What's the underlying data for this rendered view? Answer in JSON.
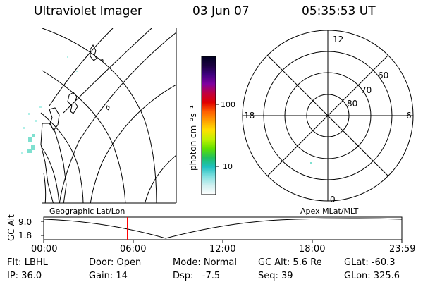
{
  "header": {
    "instrument": "Ultraviolet Imager",
    "date": "03 Jun 07",
    "time": "05:35:53 UT"
  },
  "left_panel": {
    "label": "Geographic Lat/Lon"
  },
  "right_panel": {
    "label": "Apex MLat/MLT",
    "mlt_labels": {
      "top": "12",
      "left": "18",
      "right": "6",
      "bottom": "0"
    },
    "mlat_labels": [
      "60",
      "70",
      "80"
    ]
  },
  "colorbar": {
    "unit_label": "photon cm⁻²s⁻¹",
    "ticks": [
      "100",
      "10"
    ],
    "colors": [
      "#000020",
      "#1a0040",
      "#400080",
      "#8000a0",
      "#c00040",
      "#e00000",
      "#ff6000",
      "#ffa000",
      "#ffe000",
      "#c0f000",
      "#60e000",
      "#20c060",
      "#20c0c0",
      "#80e0e0",
      "#d0f0f0",
      "#ffffff"
    ]
  },
  "timeline": {
    "ylabel": "GC Alt",
    "y_ticks": [
      "9.0",
      "1.8"
    ],
    "x_ticks": [
      "00:00",
      "06:00",
      "12:00",
      "18:00",
      "23:59"
    ],
    "current_time_fraction": 0.2333,
    "marker_color": "#ff0000"
  },
  "status": {
    "flt": "Flt: LBHL",
    "ip": "IP: 36.0",
    "door": "Door: Open",
    "gain": "Gain: 14",
    "mode": "Mode: Normal",
    "dsp": "Dsp:   -7.5",
    "gcalt": "GC Alt: 5.6 Re",
    "seq": "Seq: 39",
    "glat": "GLat: -60.3",
    "glon": "GLon: 325.6"
  }
}
